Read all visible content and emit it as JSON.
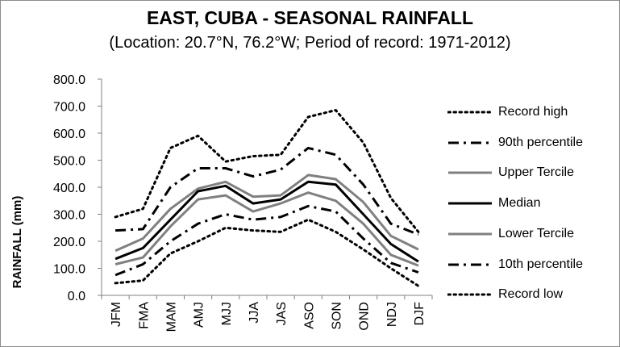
{
  "chart_data": {
    "type": "line",
    "title": "EAST, CUBA - SEASONAL RAINFALL",
    "subtitle": "(Location: 20.7°N, 76.2°W; Period of record: 1971-2012)",
    "ylabel": "RAINFALL (mm)",
    "xlabel": "",
    "ylim": [
      0,
      800
    ],
    "yticks": [
      "0.0",
      "100.0",
      "200.0",
      "300.0",
      "400.0",
      "500.0",
      "600.0",
      "700.0",
      "800.0"
    ],
    "categories": [
      "JFM",
      "FMA",
      "MAM",
      "AMJ",
      "MJJ",
      "JJA",
      "JAS",
      "ASO",
      "SON",
      "OND",
      "NDJ",
      "DJF"
    ],
    "grid": false,
    "legend_position": "right",
    "series": [
      {
        "name": "Record high",
        "color": "#000000",
        "style": "dot",
        "values": [
          290,
          320,
          545,
          590,
          495,
          515,
          520,
          660,
          685,
          565,
          360,
          235
        ]
      },
      {
        "name": "90th percentile",
        "color": "#000000",
        "style": "dashdot",
        "values": [
          240,
          245,
          400,
          470,
          470,
          440,
          465,
          545,
          520,
          410,
          265,
          225
        ]
      },
      {
        "name": "Upper Tercile",
        "color": "#808080",
        "style": "solid",
        "values": [
          165,
          210,
          320,
          395,
          420,
          365,
          370,
          445,
          430,
          345,
          220,
          170
        ]
      },
      {
        "name": "Median",
        "color": "#000000",
        "style": "solid",
        "values": [
          135,
          175,
          280,
          385,
          405,
          340,
          355,
          420,
          410,
          300,
          190,
          125
        ]
      },
      {
        "name": "Lower Tercile",
        "color": "#808080",
        "style": "solid",
        "values": [
          115,
          140,
          255,
          355,
          370,
          310,
          340,
          380,
          350,
          265,
          150,
          110
        ]
      },
      {
        "name": "10th percentile",
        "color": "#000000",
        "style": "dashdot",
        "values": [
          75,
          115,
          200,
          265,
          300,
          280,
          290,
          330,
          310,
          210,
          120,
          85
        ]
      },
      {
        "name": "Record low",
        "color": "#000000",
        "style": "dot",
        "values": [
          45,
          55,
          155,
          200,
          250,
          240,
          235,
          280,
          235,
          170,
          100,
          35
        ]
      }
    ]
  }
}
